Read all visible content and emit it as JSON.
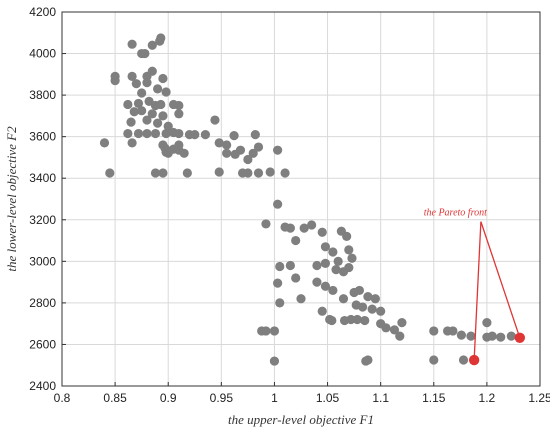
{
  "chart_data": {
    "type": "scatter",
    "xlabel": "the upper-level objective F1",
    "ylabel": "the lower-level objective F2",
    "xlim": [
      0.8,
      1.25
    ],
    "ylim": [
      2400,
      4200
    ],
    "xticks": [
      "0.8",
      "0.85",
      "0.9",
      "0.95",
      "1",
      "1.05",
      "1.1",
      "1.15",
      "1.2",
      "1.25"
    ],
    "yticks": [
      "2400",
      "2600",
      "2800",
      "3000",
      "3200",
      "3400",
      "3600",
      "3800",
      "4000",
      "4200"
    ],
    "grid": true,
    "colors": {
      "points": "#7f7f7f",
      "pareto": "#e03535",
      "grid": "#d9d9d9"
    },
    "annotation": {
      "text": "the Pareto front",
      "x": 1.2,
      "y": 3220
    },
    "series": [
      {
        "values": [
          [
            0.866,
            4045
          ],
          [
            0.885,
            4040
          ],
          [
            0.892,
            4060
          ],
          [
            0.893,
            4075
          ],
          [
            0.875,
            4000
          ],
          [
            0.878,
            4000
          ],
          [
            0.85,
            3890
          ],
          [
            0.85,
            3870
          ],
          [
            0.866,
            3890
          ],
          [
            0.88,
            3890
          ],
          [
            0.885,
            3915
          ],
          [
            0.895,
            3880
          ],
          [
            0.87,
            3855
          ],
          [
            0.88,
            3860
          ],
          [
            0.89,
            3830
          ],
          [
            0.875,
            3810
          ],
          [
            0.898,
            3815
          ],
          [
            0.862,
            3755
          ],
          [
            0.872,
            3760
          ],
          [
            0.882,
            3770
          ],
          [
            0.888,
            3750
          ],
          [
            0.893,
            3755
          ],
          [
            0.905,
            3755
          ],
          [
            0.91,
            3750
          ],
          [
            0.868,
            3720
          ],
          [
            0.875,
            3725
          ],
          [
            0.885,
            3710
          ],
          [
            0.895,
            3700
          ],
          [
            0.91,
            3710
          ],
          [
            0.865,
            3670
          ],
          [
            0.88,
            3680
          ],
          [
            0.89,
            3665
          ],
          [
            0.9,
            3650
          ],
          [
            0.862,
            3615
          ],
          [
            0.872,
            3615
          ],
          [
            0.88,
            3615
          ],
          [
            0.888,
            3615
          ],
          [
            0.898,
            3615
          ],
          [
            0.905,
            3620
          ],
          [
            0.91,
            3615
          ],
          [
            0.92,
            3610
          ],
          [
            0.925,
            3610
          ],
          [
            0.935,
            3610
          ],
          [
            0.944,
            3680
          ],
          [
            0.84,
            3570
          ],
          [
            0.866,
            3570
          ],
          [
            0.895,
            3560
          ],
          [
            0.897,
            3545
          ],
          [
            0.905,
            3540
          ],
          [
            0.91,
            3535
          ],
          [
            0.91,
            3560
          ],
          [
            0.898,
            3525
          ],
          [
            0.9,
            3520
          ],
          [
            0.915,
            3520
          ],
          [
            0.948,
            3570
          ],
          [
            0.955,
            3560
          ],
          [
            0.962,
            3605
          ],
          [
            0.982,
            3610
          ],
          [
            0.985,
            3550
          ],
          [
            0.968,
            3535
          ],
          [
            1.003,
            3535
          ],
          [
            0.955,
            3520
          ],
          [
            0.963,
            3515
          ],
          [
            0.975,
            3490
          ],
          [
            0.98,
            3520
          ],
          [
            0.845,
            3425
          ],
          [
            0.888,
            3425
          ],
          [
            0.895,
            3425
          ],
          [
            0.918,
            3425
          ],
          [
            0.948,
            3430
          ],
          [
            0.97,
            3425
          ],
          [
            0.975,
            3425
          ],
          [
            0.985,
            3425
          ],
          [
            0.996,
            3430
          ],
          [
            1.01,
            3425
          ],
          [
            1.003,
            3275
          ],
          [
            0.992,
            3180
          ],
          [
            1.01,
            3165
          ],
          [
            1.015,
            3160
          ],
          [
            1.028,
            3160
          ],
          [
            1.035,
            3175
          ],
          [
            1.045,
            3140
          ],
          [
            1.063,
            3145
          ],
          [
            1.068,
            3120
          ],
          [
            1.02,
            3100
          ],
          [
            1.048,
            3070
          ],
          [
            1.055,
            3045
          ],
          [
            1.07,
            3055
          ],
          [
            1.073,
            3015
          ],
          [
            1.06,
            3000
          ],
          [
            1.04,
            2980
          ],
          [
            1.005,
            2975
          ],
          [
            1.015,
            2980
          ],
          [
            1.048,
            2990
          ],
          [
            1.058,
            2960
          ],
          [
            1.065,
            2950
          ],
          [
            1.07,
            2970
          ],
          [
            1.02,
            2920
          ],
          [
            1.003,
            2895
          ],
          [
            1.04,
            2900
          ],
          [
            1.048,
            2880
          ],
          [
            1.055,
            2860
          ],
          [
            1.075,
            2850
          ],
          [
            1.08,
            2860
          ],
          [
            1.065,
            2820
          ],
          [
            1.088,
            2830
          ],
          [
            1.095,
            2820
          ],
          [
            1.077,
            2790
          ],
          [
            1.083,
            2780
          ],
          [
            1.092,
            2770
          ],
          [
            1.1,
            2760
          ],
          [
            1.025,
            2820
          ],
          [
            1.005,
            2800
          ],
          [
            1.045,
            2760
          ],
          [
            1.052,
            2720
          ],
          [
            1.054,
            2715
          ],
          [
            1.066,
            2715
          ],
          [
            1.072,
            2720
          ],
          [
            1.078,
            2720
          ],
          [
            1.085,
            2715
          ],
          [
            1.1,
            2700
          ],
          [
            1.12,
            2705
          ],
          [
            1.105,
            2680
          ],
          [
            1.113,
            2670
          ],
          [
            1.118,
            2640
          ],
          [
            0.988,
            2665
          ],
          [
            0.992,
            2665
          ],
          [
            1.0,
            2665
          ],
          [
            1.0,
            2520
          ],
          [
            1.086,
            2520
          ],
          [
            1.088,
            2525
          ],
          [
            1.15,
            2665
          ],
          [
            1.163,
            2665
          ],
          [
            1.168,
            2665
          ],
          [
            1.176,
            2645
          ],
          [
            1.185,
            2640
          ],
          [
            1.2,
            2635
          ],
          [
            1.205,
            2640
          ],
          [
            1.213,
            2635
          ],
          [
            1.223,
            2640
          ],
          [
            1.2,
            2705
          ],
          [
            1.15,
            2525
          ],
          [
            1.178,
            2525
          ]
        ]
      },
      {
        "values": [
          [
            1.188,
            2525
          ],
          [
            1.231,
            2632
          ]
        ]
      }
    ]
  }
}
